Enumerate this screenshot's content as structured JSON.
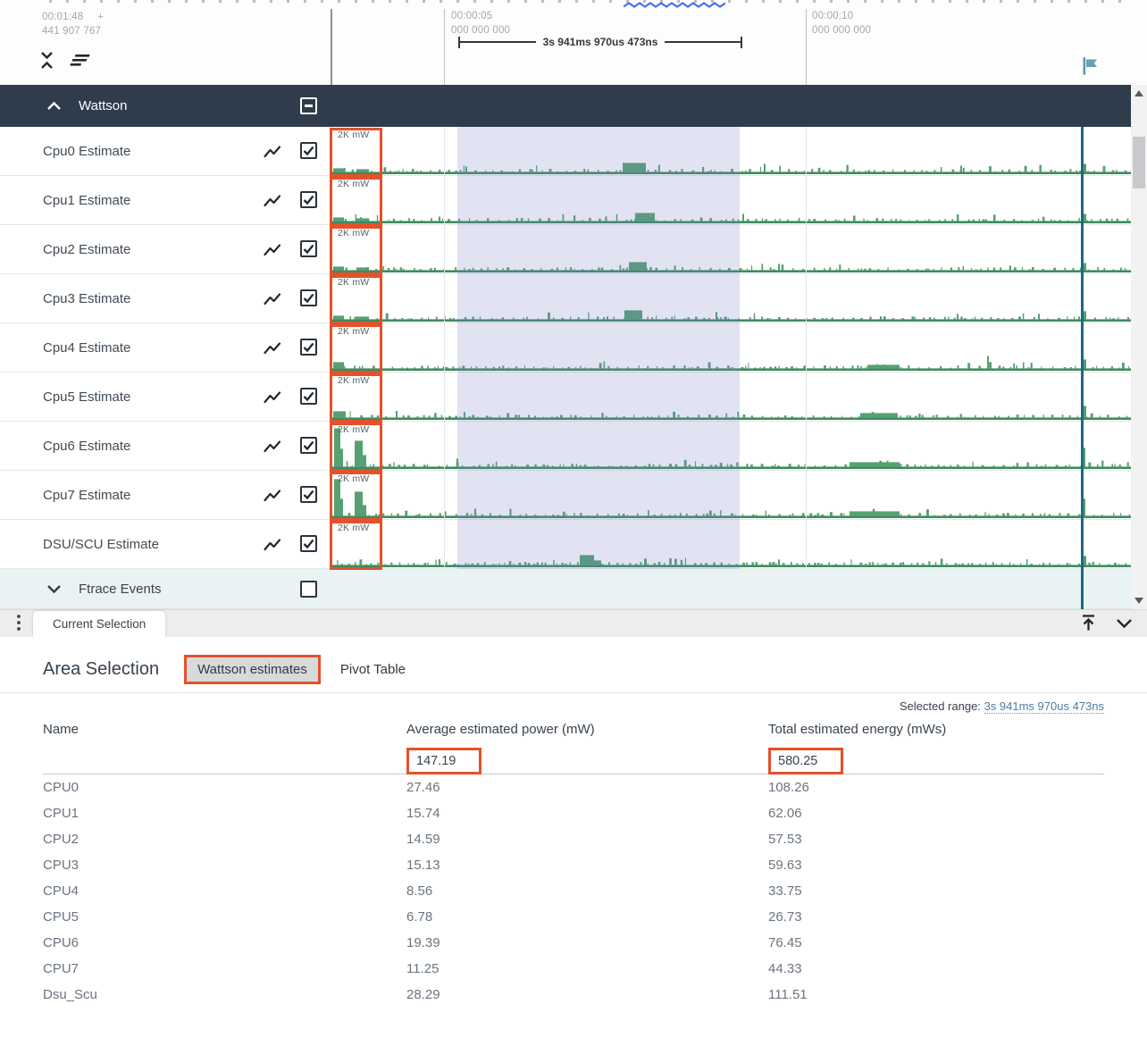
{
  "colors": {
    "annotation_orange": "#e4512b",
    "track_green": "#55a171",
    "track_green_dark": "#3f8a60",
    "selection_fill": "#d7daf0",
    "group_header_bg": "#2e3c4c",
    "marker_teal": "#1b6b7d",
    "link_blue": "#4f7da0"
  },
  "icons": {
    "collapse_tracks": "unfold-less-icon",
    "sort_tracks": "sort-icon",
    "flag": "flag-icon",
    "group_expanded": "chevron-up-icon",
    "group_collapsed": "chevron-down-icon",
    "track_type": "line-chart-icon",
    "menu": "kebab-vertical-icon",
    "dock_top": "arrow-to-top-icon",
    "collapse_panel": "chevron-down-icon"
  },
  "ruler": {
    "viewport_time": "00:01:48",
    "viewport_plus": "+",
    "viewport_offset": "441 907 767",
    "ticks": [
      {
        "time": "00:00:05",
        "offset": "000 000 000"
      },
      {
        "time": "00:00:10",
        "offset": "000 000 000"
      }
    ],
    "selection_duration": "3s 941ms 970us 473ns"
  },
  "timeline": {
    "group": {
      "label": "Wattson",
      "checkbox": "indeterminate"
    },
    "tracks": [
      {
        "name": "Cpu0 Estimate",
        "scale": "2K mW",
        "checked": true
      },
      {
        "name": "Cpu1 Estimate",
        "scale": "2K mW",
        "checked": true
      },
      {
        "name": "Cpu2 Estimate",
        "scale": "2K mW",
        "checked": true
      },
      {
        "name": "Cpu3 Estimate",
        "scale": "2K mW",
        "checked": true
      },
      {
        "name": "Cpu4 Estimate",
        "scale": "2K mW",
        "checked": true
      },
      {
        "name": "Cpu5 Estimate",
        "scale": "2K mW",
        "checked": true
      },
      {
        "name": "Cpu6 Estimate",
        "scale": "2K mW",
        "checked": true
      },
      {
        "name": "Cpu7 Estimate",
        "scale": "2K mW",
        "checked": true
      },
      {
        "name": "DSU/SCU Estimate",
        "scale": "2K mW",
        "checked": true
      }
    ],
    "collapsed_group": {
      "label": "Ftrace Events",
      "checked": false
    }
  },
  "tabbar": {
    "tabs": [
      {
        "label": "Current Selection",
        "active": true
      }
    ]
  },
  "details": {
    "title": "Area Selection",
    "tabs": [
      {
        "label": "Wattson estimates",
        "active": true
      },
      {
        "label": "Pivot Table",
        "active": false
      }
    ],
    "selected_range_label": "Selected range:",
    "selected_range_value": "3s 941ms 970us 473ns",
    "table": {
      "columns": [
        "Name",
        "Average estimated power (mW)",
        "Total estimated energy (mWs)"
      ],
      "totals": {
        "avg_power": "147.19",
        "total_energy": "580.25"
      },
      "rows": [
        {
          "name": "CPU0",
          "avg_power": "27.46",
          "total_energy": "108.26"
        },
        {
          "name": "CPU1",
          "avg_power": "15.74",
          "total_energy": "62.06"
        },
        {
          "name": "CPU2",
          "avg_power": "14.59",
          "total_energy": "57.53"
        },
        {
          "name": "CPU3",
          "avg_power": "15.13",
          "total_energy": "59.63"
        },
        {
          "name": "CPU4",
          "avg_power": "8.56",
          "total_energy": "33.75"
        },
        {
          "name": "CPU5",
          "avg_power": "6.78",
          "total_energy": "26.73"
        },
        {
          "name": "CPU6",
          "avg_power": "19.39",
          "total_energy": "76.45"
        },
        {
          "name": "CPU7",
          "avg_power": "11.25",
          "total_energy": "44.33"
        },
        {
          "name": "Dsu_Scu",
          "avg_power": "28.29",
          "total_energy": "111.51"
        }
      ]
    }
  }
}
